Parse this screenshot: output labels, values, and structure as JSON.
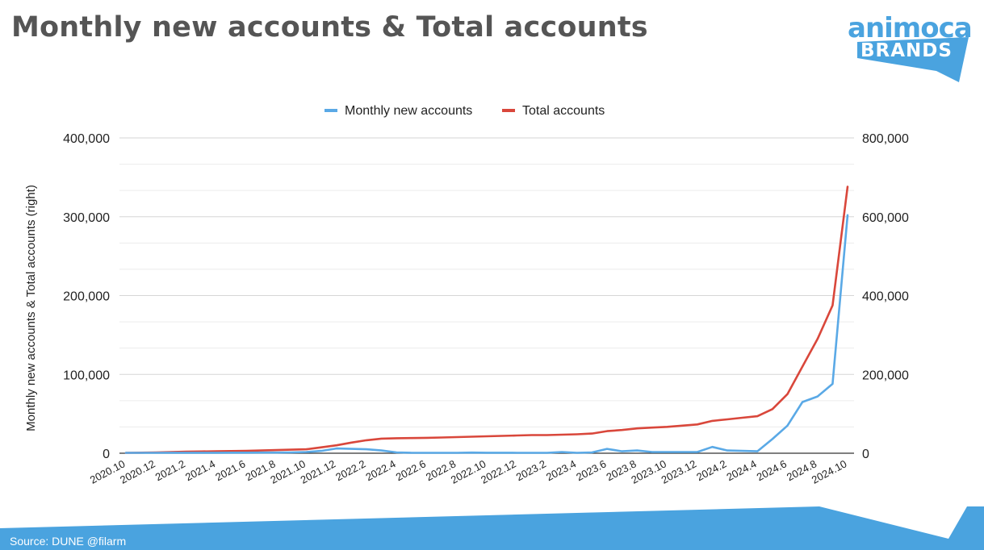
{
  "page": {
    "title": "Monthly new accounts & Total accounts",
    "source": "Source: DUNE @filarm"
  },
  "logo": {
    "line1": "animoca",
    "line2": "BRANDS",
    "color": "#4aa3df"
  },
  "colors": {
    "monthly": "#5aa9e6",
    "total": "#d9473b",
    "footer": "#4aa3df",
    "grid": "#e2e2e2",
    "axis_text": "#222222"
  },
  "chart_data": {
    "type": "line",
    "ylabel": "Monthly new accounts & Total accounts (right)",
    "legend_position": "top-center",
    "grid": true,
    "x_tick_labels": [
      "2020.10",
      "2020.12",
      "2021.2",
      "2021.4",
      "2021.6",
      "2021.8",
      "2021.10",
      "2021.12",
      "2022.2",
      "2022.4",
      "2022.6",
      "2022.8",
      "2022.10",
      "2022.12",
      "2023.2",
      "2023.4",
      "2023.6",
      "2023.8",
      "2023.10",
      "2023.12",
      "2024.2",
      "2024.4",
      "2024.6",
      "2024.8",
      "2024.10"
    ],
    "x": [
      "2020.10",
      "2020.11",
      "2020.12",
      "2021.1",
      "2021.2",
      "2021.3",
      "2021.4",
      "2021.5",
      "2021.6",
      "2021.7",
      "2021.8",
      "2021.9",
      "2021.10",
      "2021.11",
      "2021.12",
      "2022.1",
      "2022.2",
      "2022.3",
      "2022.4",
      "2022.5",
      "2022.6",
      "2022.7",
      "2022.8",
      "2022.9",
      "2022.10",
      "2022.11",
      "2022.12",
      "2023.1",
      "2023.2",
      "2023.3",
      "2023.4",
      "2023.5",
      "2023.6",
      "2023.7",
      "2023.8",
      "2023.9",
      "2023.10",
      "2023.11",
      "2023.12",
      "2024.1",
      "2024.2",
      "2024.3",
      "2024.4",
      "2024.5",
      "2024.6",
      "2024.7",
      "2024.8",
      "2024.9",
      "2024.10"
    ],
    "left_axis": {
      "ylim": [
        0,
        400000
      ],
      "ticks": [
        0,
        100000,
        200000,
        300000,
        400000
      ],
      "tick_labels": [
        "0",
        "100,000",
        "200,000",
        "300,000",
        "400,000"
      ]
    },
    "right_axis": {
      "ylim": [
        0,
        800000
      ],
      "ticks": [
        0,
        200000,
        400000,
        600000,
        800000
      ],
      "tick_labels": [
        "0",
        "200,000",
        "400,000",
        "600,000",
        "800,000"
      ]
    },
    "series": [
      {
        "name": "Monthly new accounts",
        "axis": "left",
        "values": [
          500,
          500,
          500,
          600,
          600,
          600,
          600,
          700,
          700,
          800,
          800,
          1000,
          1500,
          3000,
          6000,
          5500,
          5000,
          3500,
          1000,
          500,
          500,
          500,
          500,
          800,
          600,
          600,
          500,
          500,
          500,
          1500,
          500,
          1000,
          5500,
          2500,
          3500,
          1500,
          1500,
          1500,
          1500,
          8000,
          3500,
          3000,
          2500,
          18000,
          35000,
          65000,
          72000,
          88000,
          302000
        ]
      },
      {
        "name": "Total accounts",
        "axis": "right",
        "values": [
          1000,
          1500,
          2000,
          3000,
          4000,
          4500,
          5000,
          5500,
          6000,
          7000,
          8000,
          9000,
          10000,
          15000,
          20000,
          27000,
          33000,
          37000,
          38000,
          38500,
          39000,
          40000,
          41000,
          42000,
          43000,
          44000,
          45000,
          46000,
          46000,
          47000,
          48000,
          50000,
          56000,
          59000,
          63000,
          65000,
          67000,
          70000,
          73000,
          82000,
          86000,
          90000,
          94000,
          112000,
          150000,
          220000,
          290000,
          375000,
          676000
        ]
      }
    ]
  }
}
